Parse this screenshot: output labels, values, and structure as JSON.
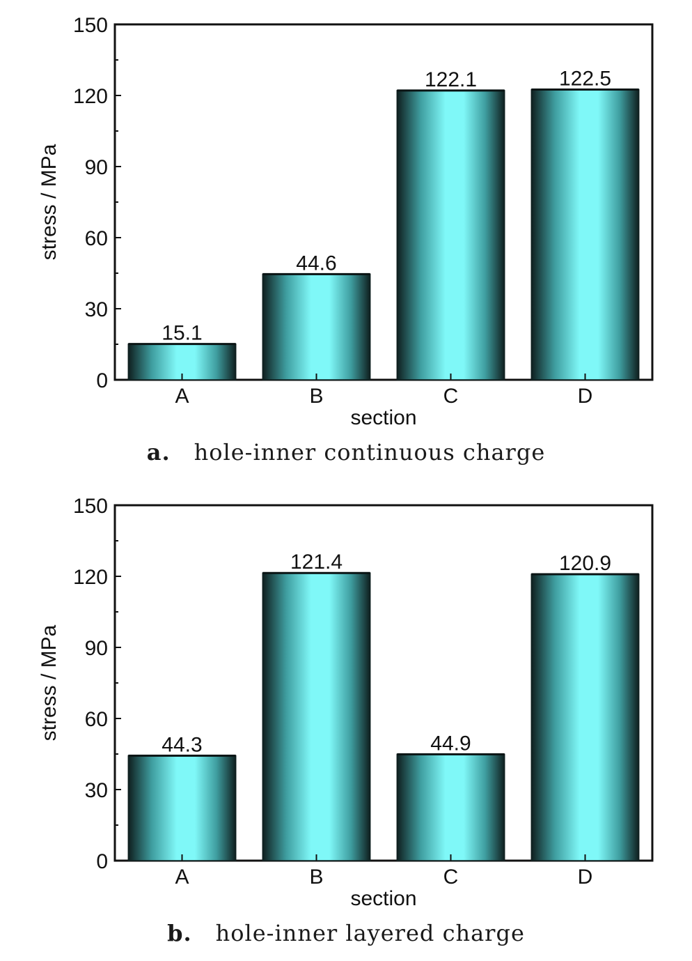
{
  "chart_data": [
    {
      "type": "bar",
      "categories": [
        "A",
        "B",
        "C",
        "D"
      ],
      "values": [
        15.1,
        44.6,
        122.1,
        122.5
      ],
      "data_labels": [
        "15.1",
        "44.6",
        "122.1",
        "122.5"
      ],
      "xlabel": "section",
      "ylabel": "stress / MPa",
      "ylim": [
        0,
        150
      ],
      "yticks": [
        "0",
        "30",
        "60",
        "90",
        "120",
        "150"
      ],
      "bar_color": "#7ff8f8",
      "bar_edge_color": "#0f1f1f",
      "caption_tag": "a.",
      "caption_text": "hole-inner continuous charge"
    },
    {
      "type": "bar",
      "categories": [
        "A",
        "B",
        "C",
        "D"
      ],
      "values": [
        44.3,
        121.4,
        44.9,
        120.9
      ],
      "data_labels": [
        "44.3",
        "121.4",
        "44.9",
        "120.9"
      ],
      "xlabel": "section",
      "ylabel": "stress / MPa",
      "ylim": [
        0,
        150
      ],
      "yticks": [
        "0",
        "30",
        "60",
        "90",
        "120",
        "150"
      ],
      "bar_color": "#7ff8f8",
      "bar_edge_color": "#0f1f1f",
      "caption_tag": "b.",
      "caption_text": "hole-inner layered charge"
    }
  ]
}
